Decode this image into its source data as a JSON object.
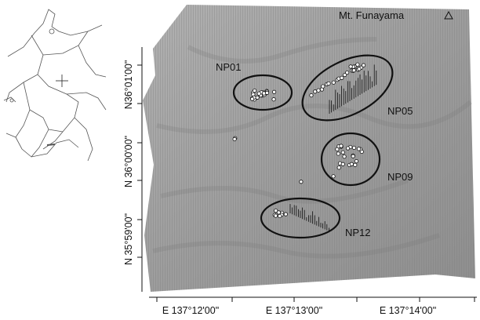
{
  "peak": {
    "label": "Mt. Funayama"
  },
  "sites": [
    {
      "label": "NP01"
    },
    {
      "label": "NP05"
    },
    {
      "label": "NP09"
    },
    {
      "label": "NP12"
    }
  ],
  "lat_labels": [
    "N36°01'00\"",
    "N 36°00'00\"",
    "N 35°59'00\""
  ],
  "lon_labels": [
    "E 137°12'00\"",
    "E 137°13'00\"",
    "E 137°14'00\""
  ]
}
